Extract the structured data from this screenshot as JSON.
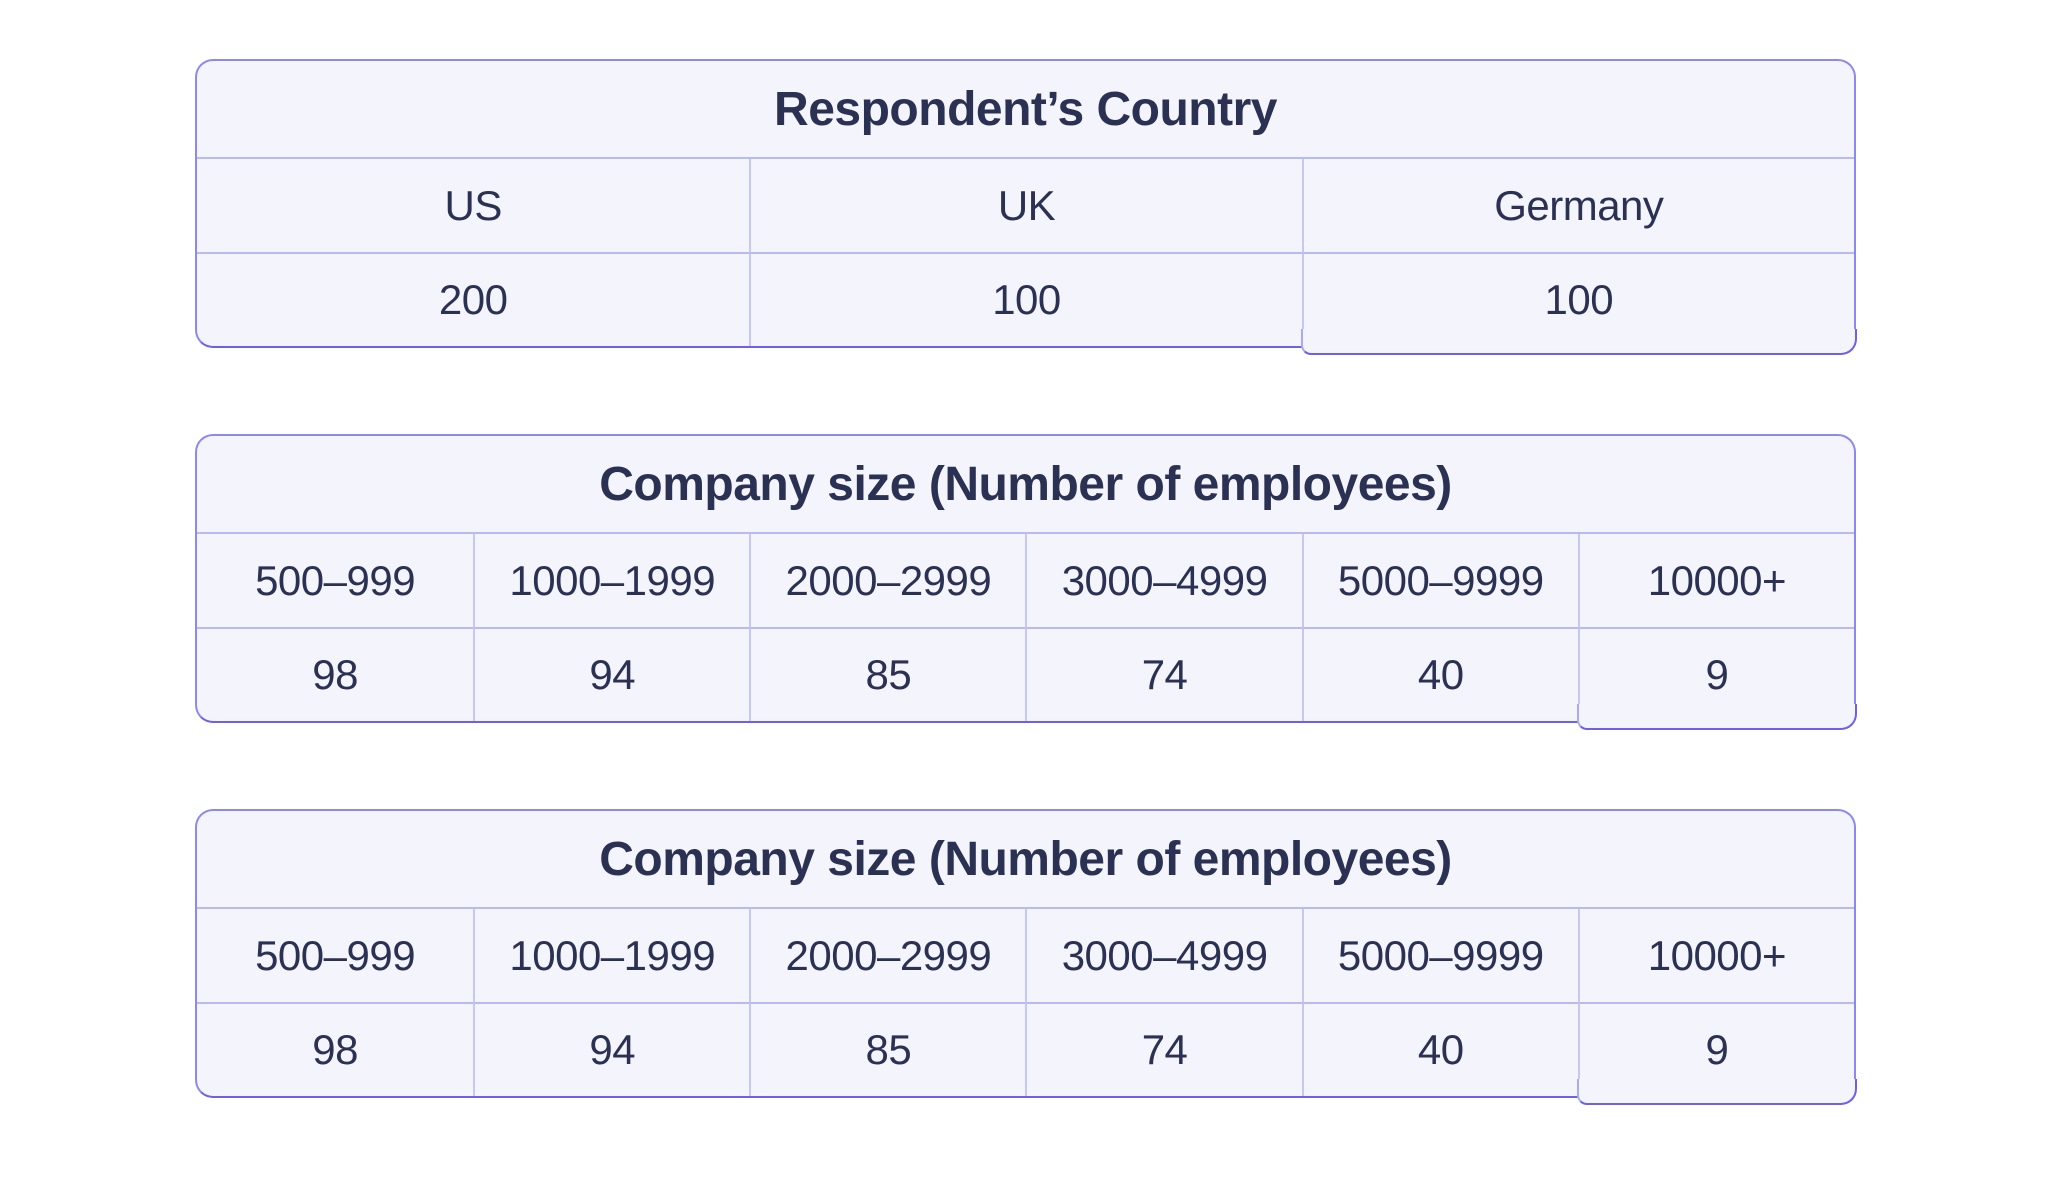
{
  "page": {
    "background": "#ffffff"
  },
  "colors": {
    "card_background": "#f4f4fc",
    "border_outer": "#8d88f0",
    "border_bottom": "#6c61e8",
    "grid_line": "#c5c8f4",
    "divider_line": "#b7bbf2",
    "text": "#2b3153"
  },
  "tables": [
    {
      "title": "Respondent’s Country",
      "columns": [
        "US",
        "UK",
        "Germany"
      ],
      "values": [
        "200",
        "100",
        "100"
      ]
    },
    {
      "title": "Company size (Number of employees)",
      "columns": [
        "500–999",
        "1000–1999",
        "2000–2999",
        "3000–4999",
        "5000–9999",
        "10000+"
      ],
      "values": [
        "98",
        "94",
        "85",
        "74",
        "40",
        "9"
      ]
    },
    {
      "title": "Company size (Number of employees)",
      "columns": [
        "500–999",
        "1000–1999",
        "2000–2999",
        "3000–4999",
        "5000–9999",
        "10000+"
      ],
      "values": [
        "98",
        "94",
        "85",
        "74",
        "40",
        "9"
      ]
    }
  ],
  "chart_data": [
    {
      "type": "table",
      "title": "Respondent’s Country",
      "categories": [
        "US",
        "UK",
        "Germany"
      ],
      "values": [
        200,
        100,
        100
      ]
    },
    {
      "type": "table",
      "title": "Company size (Number of employees)",
      "categories": [
        "500–999",
        "1000–1999",
        "2000–2999",
        "3000–4999",
        "5000–9999",
        "10000+"
      ],
      "values": [
        98,
        94,
        85,
        74,
        40,
        9
      ]
    },
    {
      "type": "table",
      "title": "Company size (Number of employees)",
      "categories": [
        "500–999",
        "1000–1999",
        "2000–2999",
        "3000–4999",
        "5000–9999",
        "10000+"
      ],
      "values": [
        98,
        94,
        85,
        74,
        40,
        9
      ]
    }
  ]
}
